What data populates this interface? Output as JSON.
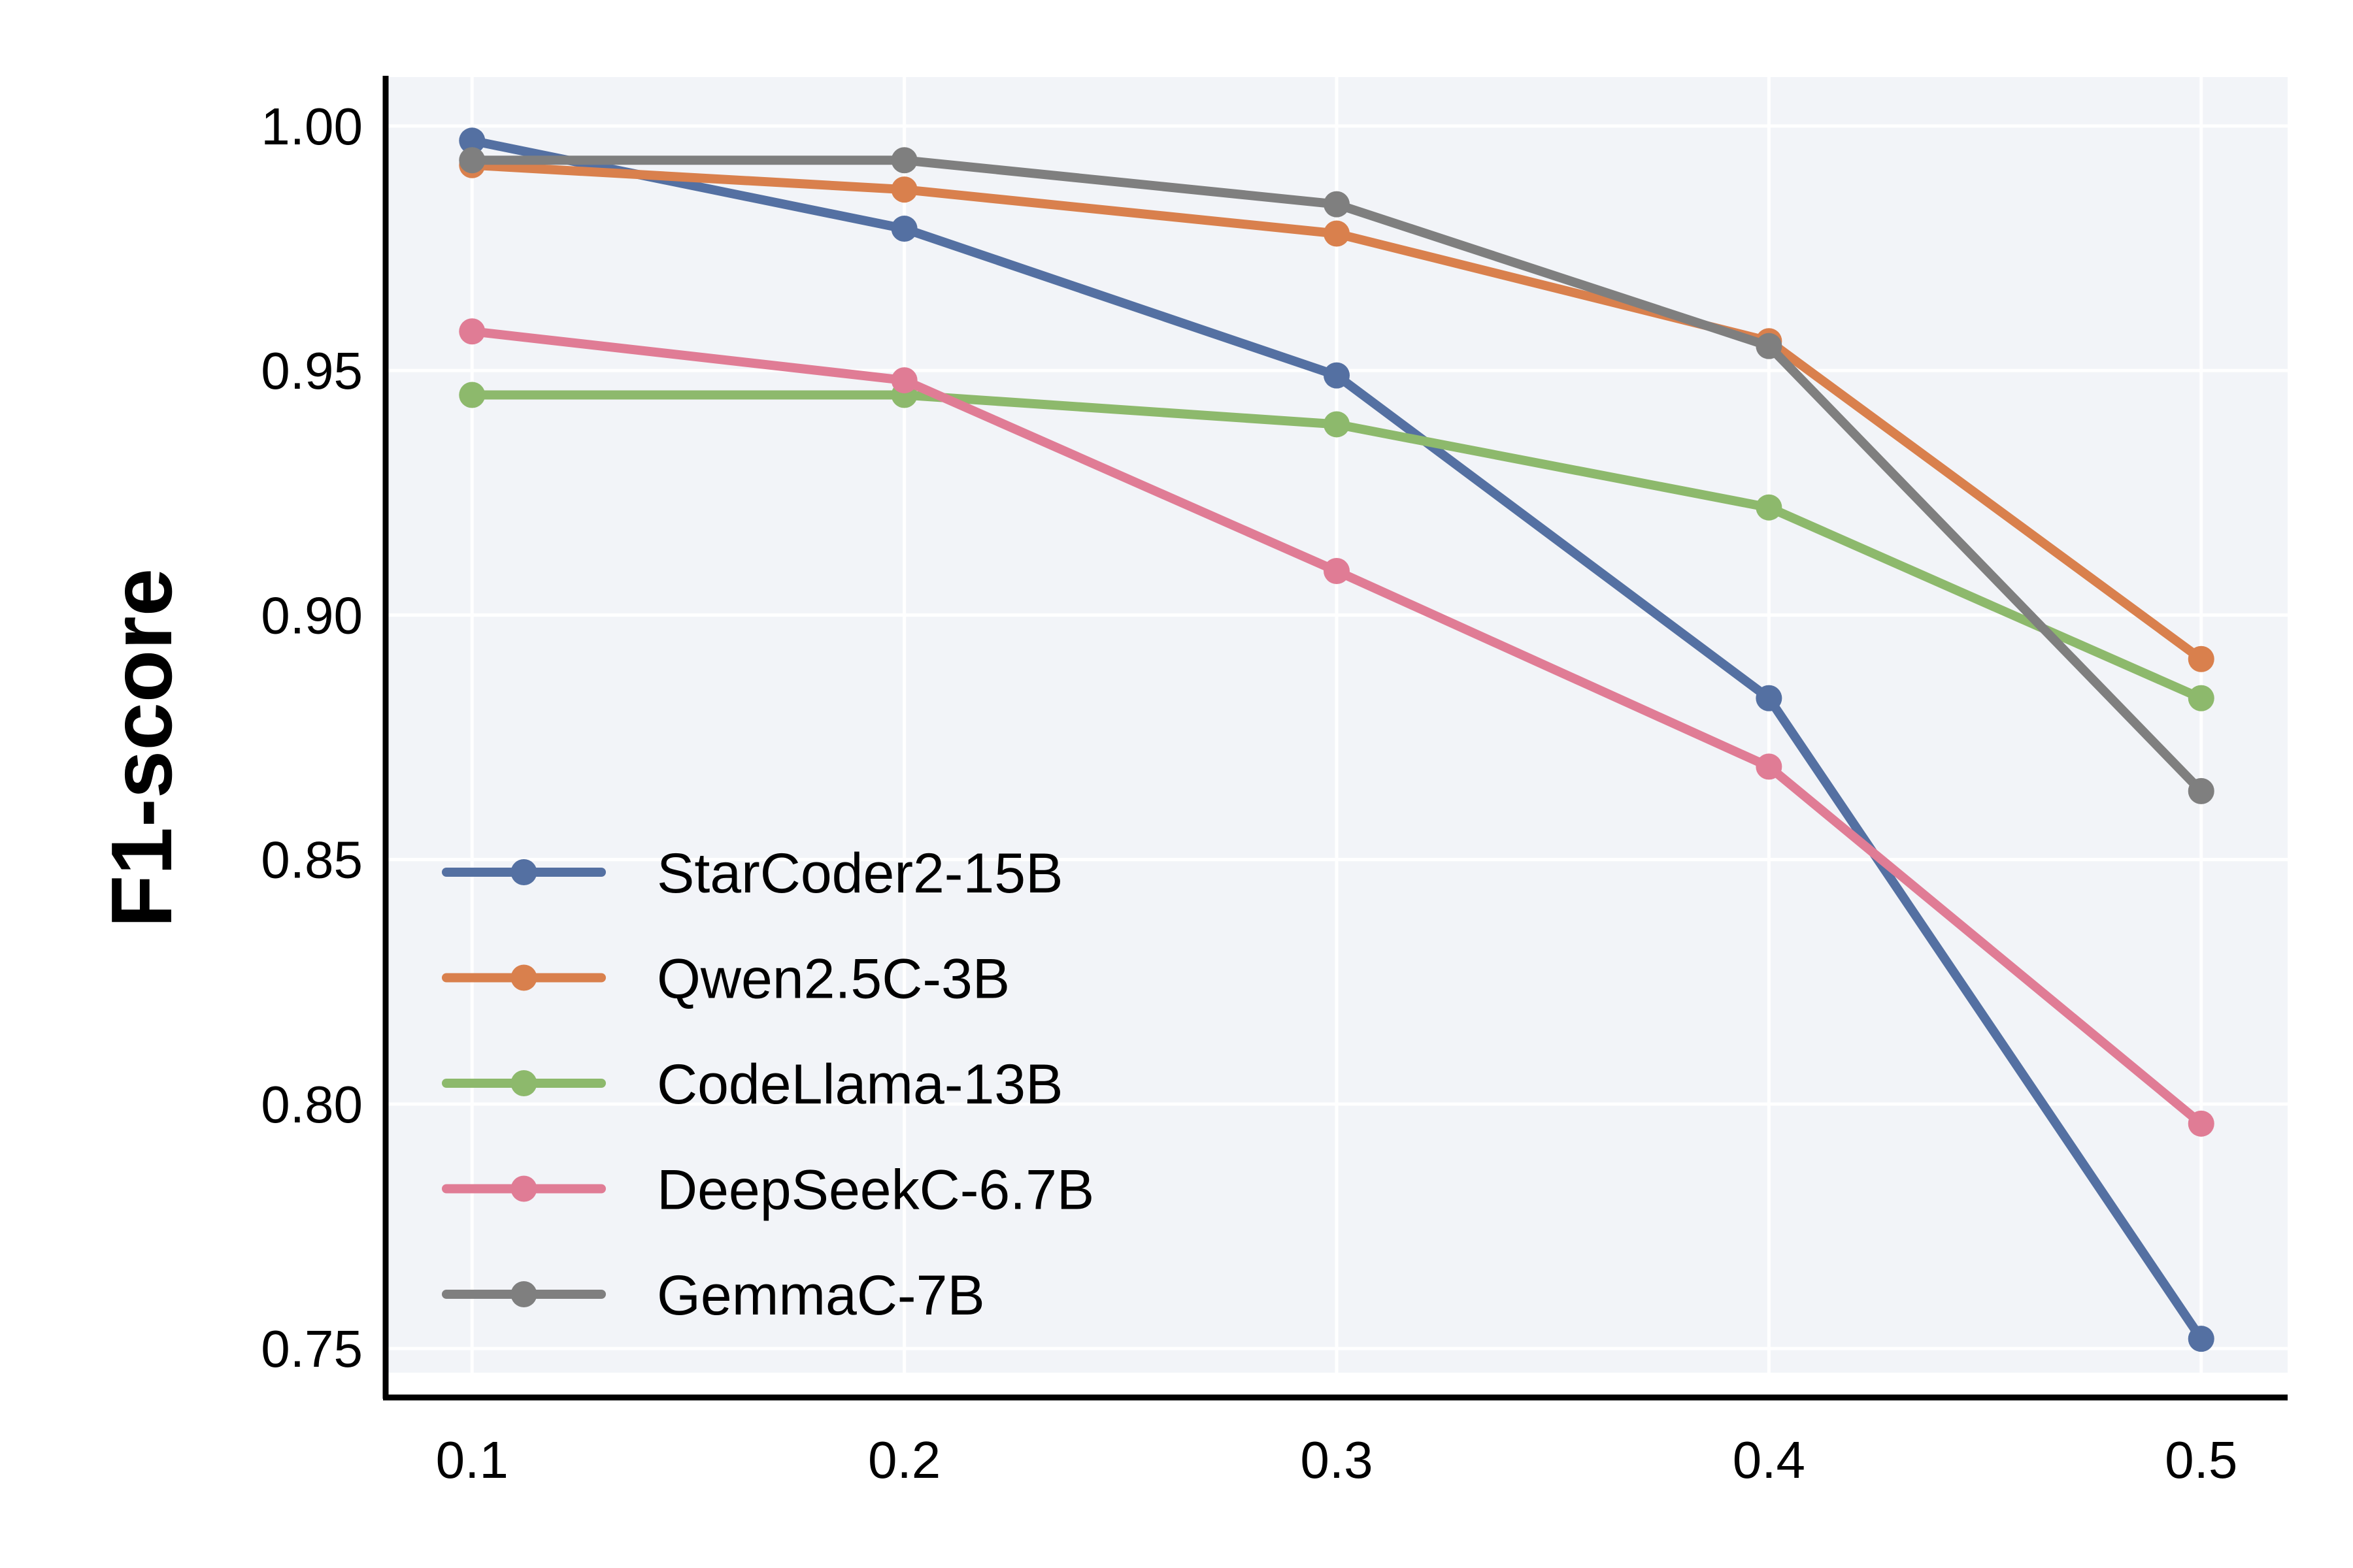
{
  "chart_data": {
    "type": "line",
    "title": "",
    "xlabel": "",
    "ylabel": "F1-score",
    "x": [
      0.1,
      0.2,
      0.3,
      0.4,
      0.5
    ],
    "x_tick_labels": [
      "0.1",
      "0.2",
      "0.3",
      "0.4",
      "0.5"
    ],
    "y_ticks": [
      0.75,
      0.8,
      0.85,
      0.9,
      0.95,
      1.0
    ],
    "y_tick_labels": [
      "0.75",
      "0.80",
      "0.85",
      "0.90",
      "0.95",
      "1.00"
    ],
    "xlim": [
      0.08,
      0.52
    ],
    "ylim": [
      0.74,
      1.01
    ],
    "grid": true,
    "legend_position": "lower-left",
    "series": [
      {
        "name": "StarCoder2-15B",
        "color": "#5470a2",
        "values": [
          0.997,
          0.979,
          0.949,
          0.883,
          0.752
        ]
      },
      {
        "name": "Qwen2.5C-3B",
        "color": "#d9804d",
        "values": [
          0.992,
          0.987,
          0.978,
          0.956,
          0.891
        ]
      },
      {
        "name": "CodeLlama-13B",
        "color": "#8db96c",
        "values": [
          0.945,
          0.945,
          0.939,
          0.922,
          0.883
        ]
      },
      {
        "name": "DeepSeekC-6.7B",
        "color": "#e07c95",
        "values": [
          0.958,
          0.948,
          0.909,
          0.869,
          0.796
        ]
      },
      {
        "name": "GemmaC-7B",
        "color": "#7f7f7f",
        "values": [
          0.993,
          0.993,
          0.984,
          0.955,
          0.864
        ]
      }
    ]
  }
}
